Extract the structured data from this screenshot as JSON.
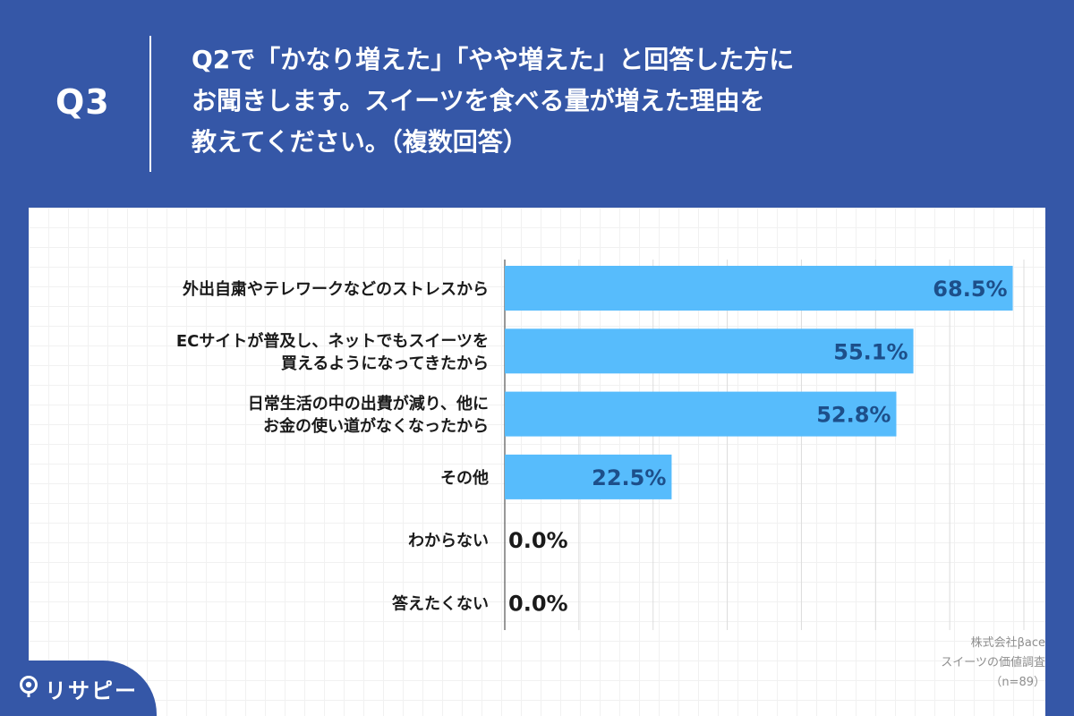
{
  "header": {
    "question_number": "Q3",
    "question_text": "Q2で「かなり増えた」「やや増えた」と回答した方に\nお聞きします。スイーツを食べる量が増えた理由を\n教えてください。（複数回答）"
  },
  "chart_data": {
    "type": "bar",
    "orientation": "horizontal",
    "categories": [
      "外出自粛やテレワークなどのストレスから",
      "ECサイトが普及し、ネットでもスイーツを\n買えるようになってきたから",
      "日常生活の中の出費が減り、他に\nお金の使い道がなくなったから",
      "その他",
      "わからない",
      "答えたくない"
    ],
    "values": [
      68.5,
      55.1,
      52.8,
      22.5,
      0.0,
      0.0
    ],
    "value_labels": [
      "68.5%",
      "55.1%",
      "52.8%",
      "22.5%",
      "0.0%",
      "0.0%"
    ],
    "xlim": [
      0,
      70
    ],
    "grid": true,
    "bar_color": "#57bcfc",
    "label_color_inside": "#1d4f8a",
    "label_color_outside": "#1a1a1a"
  },
  "brand": {
    "name": "リサピー",
    "color": "#3557a7"
  },
  "source": {
    "company": "株式会社βace",
    "survey": "スイーツの価値調査",
    "sample": "（n=89）"
  }
}
